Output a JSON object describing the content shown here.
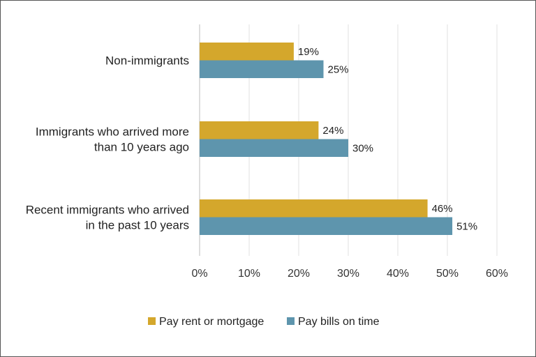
{
  "chart_data": {
    "type": "bar",
    "orientation": "horizontal",
    "categories": [
      [
        "Non-immigrants"
      ],
      [
        "Immigrants who arrived more",
        "than 10 years ago"
      ],
      [
        "Recent immigrants who arrived",
        "in the past 10 years"
      ]
    ],
    "series": [
      {
        "name": "Pay rent or mortgage",
        "color": "#d4a72c",
        "values": [
          19,
          24,
          46
        ]
      },
      {
        "name": "Pay bills on time",
        "color": "#5e95ad",
        "values": [
          25,
          30,
          51
        ]
      }
    ],
    "xlim": [
      0,
      60
    ],
    "ticks": [
      0,
      10,
      20,
      30,
      40,
      50,
      60
    ],
    "tick_suffix": "%",
    "grid": true,
    "legend": "bottom-center"
  }
}
